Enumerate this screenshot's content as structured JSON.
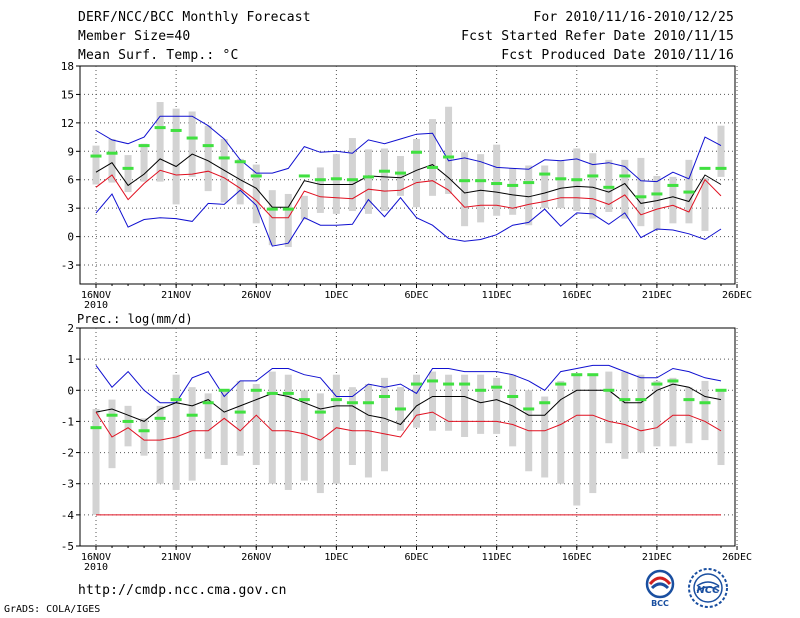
{
  "header": {
    "title": "DERF/NCC/BCC Monthly Forecast",
    "member_size": "Member Size=40",
    "variable": "Mean Surf. Temp.: °C",
    "period": "For 2010/11/16-2010/12/25",
    "started": "Fcst Started Refer Date 2010/11/15",
    "produced": "Fcst Produced Date 2010/11/16"
  },
  "footer": {
    "url": "http://cmdp.ncc.cma.gov.cn",
    "grads": "GrADS: COLA/IGES",
    "logo_bcc": "BCC",
    "logo_ncc": "NCC"
  },
  "colors": {
    "box": "#d3d3d3",
    "mean": "#40e040",
    "upper": "#1010d0",
    "median": "#000000",
    "lower": "#e01020"
  },
  "chart_data": [
    {
      "type": "box-range",
      "title": "Mean Surf. Temp.: °C",
      "x_ticks": [
        "16NOV",
        "21NOV",
        "26NOV",
        "1DEC",
        "6DEC",
        "11DEC",
        "16DEC",
        "21DEC",
        "26DEC"
      ],
      "x_sub": "2010",
      "ylim": [
        -5,
        18
      ],
      "yticks": [
        -3,
        0,
        3,
        6,
        9,
        12,
        15,
        18
      ],
      "days": 40,
      "box_high": [
        9.6,
        10.3,
        8.6,
        9.8,
        14.2,
        13.5,
        13.2,
        11.7,
        10.3,
        8.2,
        7.6,
        4.9,
        4.5,
        4.3,
        7.3,
        8.7,
        10.4,
        9.2,
        9.3,
        8.5,
        10.3,
        12.4,
        13.7,
        8.9,
        8.7,
        9.7,
        7.2,
        7.5,
        7.5,
        8.0,
        9.3,
        8.8,
        8.1,
        8.1,
        8.3,
        6.4,
        6.3,
        8.1,
        6.2,
        11.7
      ],
      "box_low": [
        5.5,
        5.7,
        4.7,
        5.8,
        5.8,
        3.4,
        6.3,
        4.8,
        3.6,
        3.4,
        1.4,
        -0.9,
        -1.1,
        1.8,
        2.5,
        2.4,
        2.7,
        2.4,
        2.7,
        4.3,
        3.1,
        4.3,
        4.5,
        1.1,
        1.5,
        2.2,
        2.3,
        1.2,
        3.0,
        3.0,
        2.7,
        1.9,
        2.6,
        1.9,
        1.1,
        0.7,
        1.4,
        1.4,
        0.6,
        6.3
      ],
      "series": [
        {
          "name": "upper",
          "values": [
            11.2,
            10.2,
            9.8,
            10.5,
            12.7,
            12.7,
            12.7,
            11.7,
            10.3,
            8.1,
            6.7,
            6.7,
            7.2,
            9.5,
            8.9,
            9.0,
            8.8,
            10.2,
            9.8,
            10.3,
            10.8,
            10.9,
            8.0,
            8.3,
            7.9,
            7.3,
            7.2,
            7.1,
            8.1,
            8.0,
            8.2,
            7.6,
            7.8,
            7.4,
            5.9,
            5.8,
            6.8,
            6.1,
            10.5,
            9.6
          ]
        },
        {
          "name": "median",
          "values": [
            6.8,
            7.8,
            5.4,
            6.6,
            8.2,
            7.4,
            8.7,
            8.0,
            7.0,
            6.0,
            5.1,
            3.1,
            3.1,
            5.9,
            5.5,
            5.5,
            5.5,
            6.4,
            6.3,
            6.2,
            7.0,
            7.6,
            6.2,
            4.6,
            4.9,
            4.7,
            4.4,
            4.2,
            4.6,
            5.1,
            5.3,
            5.2,
            4.7,
            5.6,
            3.5,
            3.8,
            4.2,
            3.7,
            6.5,
            5.5
          ]
        },
        {
          "name": "mean",
          "values": [
            8.5,
            8.8,
            7.2,
            9.6,
            11.5,
            11.2,
            10.4,
            9.6,
            8.3,
            7.9,
            6.4,
            2.9,
            2.9,
            6.4,
            6.0,
            6.1,
            6.0,
            6.3,
            6.9,
            6.7,
            8.9,
            7.3,
            8.4,
            5.9,
            5.9,
            5.6,
            5.4,
            5.7,
            6.6,
            6.1,
            6.0,
            6.4,
            5.2,
            6.4,
            4.2,
            4.5,
            5.4,
            4.7,
            7.2,
            7.2
          ]
        },
        {
          "name": "lower",
          "values": [
            5.2,
            6.5,
            3.9,
            5.6,
            7.0,
            6.5,
            6.6,
            6.9,
            6.2,
            5.1,
            3.8,
            2.0,
            2.0,
            4.8,
            4.2,
            4.1,
            4.0,
            5.0,
            4.8,
            4.9,
            5.7,
            5.9,
            4.9,
            3.1,
            3.3,
            3.3,
            3.0,
            3.4,
            3.7,
            4.1,
            4.1,
            4.0,
            3.4,
            4.4,
            2.3,
            2.9,
            3.3,
            2.6,
            6.0,
            4.3
          ]
        },
        {
          "name": "lowest",
          "values": [
            2.5,
            4.5,
            1.0,
            1.8,
            2.0,
            1.9,
            1.6,
            3.5,
            3.4,
            4.9,
            3.3,
            -1.0,
            -0.7,
            2.0,
            1.2,
            1.2,
            1.3,
            3.9,
            2.1,
            4.1,
            2.0,
            1.2,
            -0.2,
            -0.5,
            -0.3,
            0.2,
            1.2,
            1.5,
            2.9,
            1.1,
            2.5,
            2.4,
            1.3,
            2.5,
            -0.1,
            0.8,
            0.7,
            0.3,
            -0.3,
            0.8
          ]
        }
      ]
    },
    {
      "type": "box-range",
      "title": "Prec.: log(mm/d)",
      "x_ticks": [
        "16NOV",
        "21NOV",
        "26NOV",
        "1DEC",
        "6DEC",
        "11DEC",
        "16DEC",
        "21DEC",
        "26DEC"
      ],
      "x_sub": "2010",
      "ylim": [
        -5,
        2
      ],
      "yticks": [
        -5,
        -4,
        -3,
        -2,
        -1,
        0,
        1,
        2
      ],
      "days": 40,
      "box_high": [
        -0.6,
        -0.3,
        -0.5,
        -0.9,
        -0.5,
        0.5,
        0.1,
        -0.1,
        0.0,
        0.3,
        0.2,
        0.6,
        0.5,
        0.0,
        -0.1,
        0.5,
        0.1,
        0.2,
        0.4,
        0.1,
        0.5,
        0.6,
        0.5,
        0.5,
        0.5,
        0.4,
        0.5,
        0.0,
        -0.2,
        0.3,
        0.5,
        0.5,
        0.6,
        0.6,
        0.5,
        0.3,
        0.4,
        0.1,
        0.3,
        0.0
      ],
      "box_low": [
        -4.0,
        -2.5,
        -1.8,
        -2.1,
        -3.0,
        -3.2,
        -2.9,
        -2.2,
        -2.4,
        -2.1,
        -2.4,
        -3.0,
        -3.2,
        -2.9,
        -3.3,
        -3.0,
        -2.4,
        -2.8,
        -2.6,
        -1.3,
        -1.2,
        -1.3,
        -1.3,
        -1.5,
        -1.4,
        -1.4,
        -1.8,
        -2.6,
        -2.8,
        -3.0,
        -3.7,
        -3.3,
        -1.7,
        -2.2,
        -2.0,
        -1.8,
        -1.8,
        -1.7,
        -1.6,
        -2.4
      ],
      "series": [
        {
          "name": "upper",
          "values": [
            0.8,
            0.1,
            0.6,
            0.0,
            -0.4,
            -0.4,
            0.4,
            0.6,
            -0.2,
            0.3,
            0.3,
            0.7,
            0.7,
            0.5,
            0.4,
            -0.2,
            -0.2,
            0.2,
            0.1,
            0.2,
            -0.1,
            0.7,
            0.7,
            0.6,
            0.6,
            0.6,
            0.5,
            0.3,
            0.0,
            0.6,
            0.7,
            0.8,
            0.8,
            0.6,
            0.4,
            0.4,
            0.7,
            0.6,
            0.4,
            0.3
          ]
        },
        {
          "name": "median",
          "values": [
            -0.7,
            -0.6,
            -0.8,
            -1.0,
            -0.6,
            -0.4,
            -0.5,
            -0.3,
            -0.7,
            -0.5,
            -0.3,
            -0.1,
            -0.2,
            -0.4,
            -0.6,
            -0.5,
            -0.5,
            -0.8,
            -0.9,
            -1.1,
            -0.5,
            -0.2,
            -0.2,
            -0.2,
            -0.4,
            -0.3,
            -0.5,
            -0.8,
            -0.8,
            -0.3,
            0.0,
            0.0,
            0.0,
            -0.4,
            -0.4,
            0.0,
            0.2,
            0.1,
            -0.2,
            -0.3
          ]
        },
        {
          "name": "mean",
          "values": [
            -1.2,
            -0.8,
            -1.0,
            -1.3,
            -0.9,
            -0.3,
            -0.8,
            -0.4,
            0.0,
            -0.7,
            0.0,
            -0.1,
            -0.1,
            -0.3,
            -0.7,
            -0.3,
            -0.4,
            -0.4,
            -0.2,
            -0.6,
            0.2,
            0.3,
            0.2,
            0.2,
            0.0,
            0.1,
            -0.2,
            -0.6,
            -0.4,
            0.2,
            0.5,
            0.5,
            0.0,
            -0.3,
            -0.3,
            0.2,
            0.3,
            -0.3,
            -0.4,
            0.0
          ]
        },
        {
          "name": "lower",
          "values": [
            -0.7,
            -1.5,
            -1.2,
            -1.6,
            -1.6,
            -1.5,
            -1.3,
            -1.3,
            -0.9,
            -1.3,
            -0.8,
            -1.3,
            -1.3,
            -1.4,
            -1.6,
            -1.2,
            -1.3,
            -1.3,
            -1.4,
            -1.5,
            -0.8,
            -0.7,
            -1.0,
            -1.0,
            -1.0,
            -1.0,
            -1.1,
            -1.3,
            -1.3,
            -1.1,
            -0.8,
            -0.8,
            -1.0,
            -1.1,
            -1.3,
            -1.2,
            -0.8,
            -0.8,
            -1.0,
            -1.3
          ]
        },
        {
          "name": "lowest",
          "values": [
            -4.0,
            -4.0,
            -4.0,
            -4.0,
            -4.0,
            -4.0,
            -4.0,
            -4.0,
            -4.0,
            -4.0,
            -4.0,
            -4.0,
            -4.0,
            -4.0,
            -4.0,
            -4.0,
            -4.0,
            -4.0,
            -4.0,
            -4.0,
            -4.0,
            -4.0,
            -4.0,
            -4.0,
            -4.0,
            -4.0,
            -4.0,
            -4.0,
            -4.0,
            -4.0,
            -4.0,
            -4.0,
            -4.0,
            -4.0,
            -4.0,
            -4.0,
            -4.0,
            -4.0,
            -4.0,
            -4.0
          ]
        }
      ]
    }
  ]
}
